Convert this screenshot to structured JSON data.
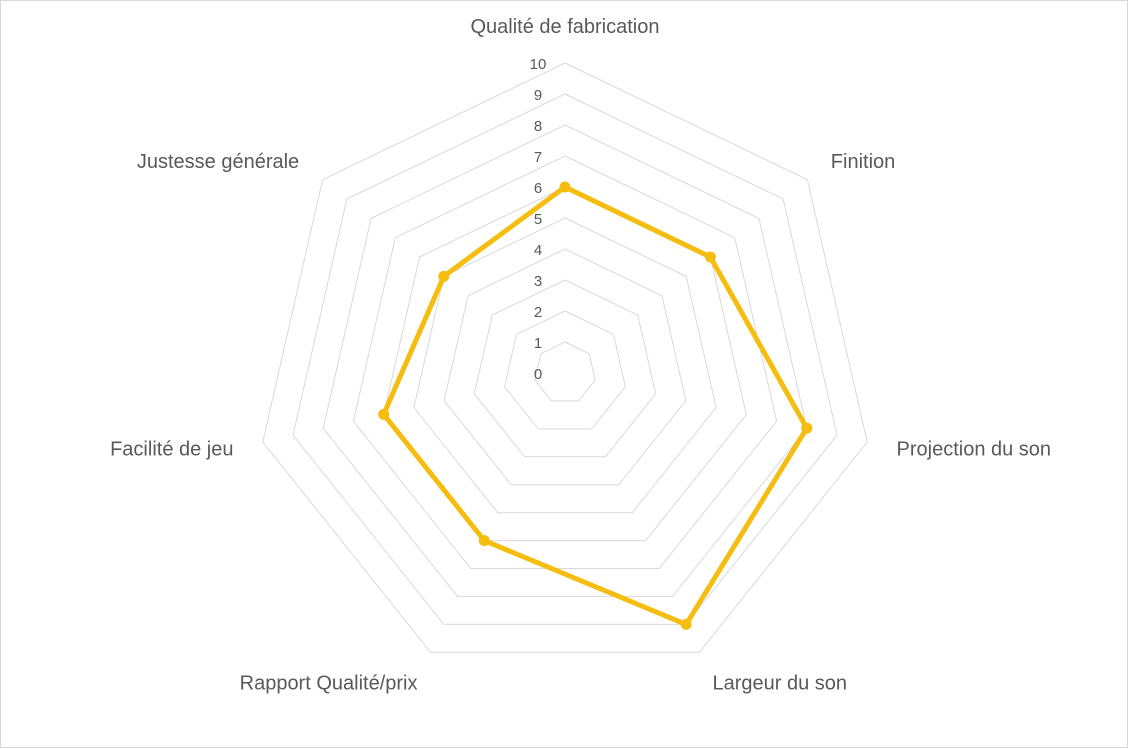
{
  "chart_data": {
    "type": "radar",
    "categories": [
      "Qualité de fabrication",
      "Finition",
      "Projection du son",
      "Largeur du son",
      "Rapport Qualité/prix",
      "Facilité de jeu",
      "Justesse générale"
    ],
    "series": [
      {
        "values": [
          6,
          6,
          8,
          9,
          6,
          6,
          5
        ],
        "color": "#f5bd0f"
      }
    ],
    "rlim": [
      0,
      10
    ],
    "ticks": [
      "0",
      "1",
      "2",
      "3",
      "4",
      "5",
      "6",
      "7",
      "8",
      "9",
      "10"
    ],
    "grid": true,
    "grid_color": "#d9d9d9",
    "label_color": "#595959"
  }
}
